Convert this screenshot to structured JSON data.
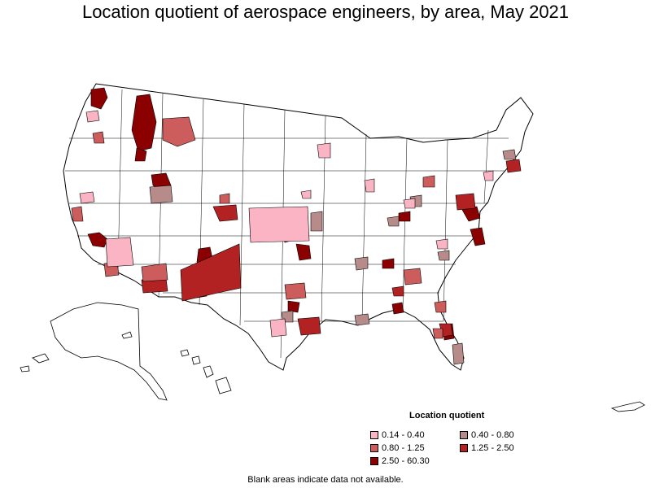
{
  "title": "Location quotient of aerospace engineers, by area, May 2021",
  "legend": {
    "title": "Location quotient",
    "items": [
      {
        "label": "0.14 - 0.40",
        "color": "#fbb4c4"
      },
      {
        "label": "0.40 - 0.80",
        "color": "#b88b8b"
      },
      {
        "label": "0.80 - 1.25",
        "color": "#cd5c5c"
      },
      {
        "label": "1.25 - 2.50",
        "color": "#b22222"
      },
      {
        "label": "2.50 - 60.30",
        "color": "#8b0000"
      }
    ]
  },
  "footnote": "Blank areas indicate data not available."
}
